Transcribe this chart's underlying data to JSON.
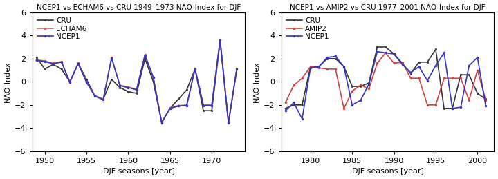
{
  "panel1": {
    "title": "NCEP1 vs ECHAM6 vs CRU 1949–1973 NAO-Index for DJF",
    "xlabel": "DJF seasons [year]",
    "ylabel": "NAO-Index",
    "xlim": [
      1948.5,
      1974.0
    ],
    "ylim": [
      -6,
      6
    ],
    "xticks": [
      1950,
      1955,
      1960,
      1965,
      1970
    ],
    "yticks": [
      -6,
      -4,
      -2,
      0,
      2,
      4,
      6
    ],
    "years": [
      1949,
      1950,
      1951,
      1952,
      1953,
      1954,
      1955,
      1956,
      1957,
      1958,
      1959,
      1960,
      1961,
      1962,
      1963,
      1964,
      1965,
      1966,
      1967,
      1968,
      1969,
      1970,
      1971,
      1972,
      1973
    ],
    "ncep1": [
      1.85,
      1.75,
      1.55,
      1.7,
      -0.05,
      1.55,
      -0.05,
      -1.25,
      -1.55,
      2.05,
      -0.35,
      -0.5,
      -0.7,
      2.3,
      0.35,
      -3.55,
      -2.3,
      -2.1,
      -2.05,
      1.1,
      -2.05,
      -2.05,
      3.6,
      -3.55,
      1.1
    ],
    "echam6": [
      1.9,
      1.8,
      1.6,
      1.75,
      0.0,
      1.6,
      0.0,
      -1.2,
      -1.5,
      2.1,
      -0.3,
      -0.45,
      -0.65,
      2.35,
      0.4,
      -3.5,
      -2.25,
      -2.05,
      -2.0,
      1.15,
      -2.0,
      -2.0,
      3.65,
      -3.5,
      1.15
    ],
    "cru": [
      2.1,
      1.1,
      1.5,
      1.1,
      0.0,
      1.6,
      0.2,
      -1.2,
      -1.5,
      0.2,
      -0.5,
      -0.85,
      -1.0,
      2.0,
      0.0,
      -3.5,
      -2.3,
      -1.5,
      -0.7,
      1.1,
      -2.5,
      -2.5,
      3.5,
      -3.55,
      1.1
    ],
    "ncep1_color": "#3333bb",
    "echam6_color": "#cc6666",
    "cru_color": "#333333",
    "legend_labels": [
      "NCEP1",
      "ECHAM6",
      "CRU"
    ],
    "ncep1_lw": 1.2,
    "echam6_lw": 1.2,
    "cru_lw": 1.2
  },
  "panel2": {
    "title": "NCEP1 vs AMIP2 vs CRU 1977–2001 NAO-Index for DJF",
    "xlabel": "DJF seasons [year]",
    "ylabel": "NAO-Index",
    "xlim": [
      1976.5,
      2002.0
    ],
    "ylim": [
      -6,
      6
    ],
    "xticks": [
      1980,
      1985,
      1990,
      1995,
      2000
    ],
    "yticks": [
      -6,
      -4,
      -2,
      0,
      2,
      4,
      6
    ],
    "years": [
      1977,
      1978,
      1979,
      1980,
      1981,
      1982,
      1983,
      1984,
      1985,
      1986,
      1987,
      1988,
      1989,
      1990,
      1991,
      1992,
      1993,
      1994,
      1995,
      1996,
      1997,
      1998,
      1999,
      2000,
      2001
    ],
    "ncep1": [
      -2.5,
      -1.8,
      -3.2,
      1.2,
      1.3,
      2.1,
      2.2,
      1.3,
      -2.0,
      -1.6,
      -0.2,
      2.6,
      2.5,
      2.4,
      1.5,
      0.8,
      1.3,
      0.1,
      1.4,
      2.5,
      -2.3,
      -2.2,
      1.4,
      2.1,
      -2.1
    ],
    "amip2": [
      -1.8,
      -0.3,
      0.3,
      1.3,
      1.2,
      1.1,
      1.1,
      -2.3,
      -0.8,
      -0.3,
      -0.6,
      1.6,
      2.5,
      1.6,
      1.7,
      0.3,
      0.3,
      -2.0,
      -2.0,
      0.3,
      0.3,
      0.3,
      -1.6,
      1.0,
      -1.6
    ],
    "cru": [
      -2.3,
      -2.0,
      -2.0,
      1.3,
      1.3,
      2.0,
      2.0,
      1.3,
      -0.4,
      -0.4,
      -0.1,
      3.0,
      3.0,
      2.4,
      1.6,
      0.7,
      1.7,
      1.7,
      2.8,
      -2.3,
      -2.3,
      0.6,
      0.6,
      -1.0,
      -1.5
    ],
    "ncep1_color": "#3333bb",
    "amip2_color": "#cc4444",
    "cru_color": "#333333",
    "legend_labels": [
      "NCEP1",
      "AMIP2",
      "CRU"
    ],
    "ncep1_lw": 1.2,
    "amip2_lw": 1.2,
    "cru_lw": 1.2
  },
  "fig_width": 7.2,
  "fig_height": 2.59,
  "dpi": 100
}
